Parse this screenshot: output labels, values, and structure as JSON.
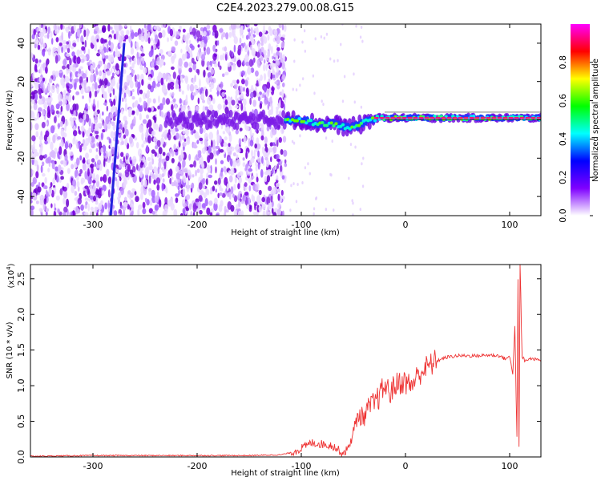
{
  "title": "C2E4.2023.279.00.08.G15",
  "chart_data": [
    {
      "type": "heatmap",
      "panel": "spectrogram",
      "xlabel": "Height of straight line (km)",
      "ylabel": "Frequency (Hz)",
      "xlim": [
        -360,
        130
      ],
      "ylim": [
        -50,
        50
      ],
      "xticks": [
        -300,
        -200,
        -100,
        0,
        100
      ],
      "xtick_labels": [
        "-300",
        "-200",
        "-100",
        "0",
        "100"
      ],
      "yticks": [
        -40,
        -20,
        0,
        20,
        40
      ],
      "ytick_labels": [
        "-40",
        "-20",
        "0",
        "20",
        "40"
      ],
      "description_of_content": "scattered low-amplitude noise for heights below about -115 km; strong narrow signal near 0 to 2 Hz from about -115 km to 130 km; a nearly vertical track from about (-283, -50) to (-270, 40)",
      "noise_region_x": [
        -360,
        -115
      ],
      "signal_band_center_hz": [
        {
          "x": -115,
          "y": 0
        },
        {
          "x": -100,
          "y": 0
        },
        {
          "x": -85,
          "y": -2
        },
        {
          "x": -70,
          "y": -2
        },
        {
          "x": -55,
          "y": -4
        },
        {
          "x": -45,
          "y": -3
        },
        {
          "x": -35,
          "y": 0
        },
        {
          "x": -25,
          "y": 1
        },
        {
          "x": 0,
          "y": 1
        },
        {
          "x": 40,
          "y": 1
        },
        {
          "x": 80,
          "y": 1
        },
        {
          "x": 100,
          "y": 1
        },
        {
          "x": 130,
          "y": 1
        }
      ],
      "track_line": [
        {
          "x": -283,
          "y": -50
        },
        {
          "x": -270,
          "y": 40
        }
      ]
    },
    {
      "type": "colorbar",
      "label": "Normalized spectral amplitude",
      "range": [
        0.0,
        1.0
      ],
      "ticks": [
        0.0,
        0.2,
        0.4,
        0.6,
        0.8
      ],
      "tick_labels": [
        "0.0",
        "0.2",
        "0.4",
        "0.6",
        "0.8"
      ],
      "colormap": [
        "#ffffff",
        "#7f00ff",
        "#0000ff",
        "#00ffff",
        "#00ff00",
        "#ffff00",
        "#ff0000",
        "#ff00ff"
      ]
    },
    {
      "type": "line",
      "panel": "snr",
      "xlabel": "Height of straight line (km)",
      "ylabel": "SNR (10 * v/v)",
      "scale_label": "(x10",
      "scale_exponent": "4",
      "xlim": [
        -360,
        130
      ],
      "ylim": [
        0.0,
        2.7
      ],
      "xticks": [
        -300,
        -200,
        -100,
        0,
        100
      ],
      "xtick_labels": [
        "-300",
        "-200",
        "-100",
        "0",
        "100"
      ],
      "yticks": [
        0.0,
        0.5,
        1.0,
        1.5,
        2.0,
        2.5
      ],
      "ytick_labels": [
        "0.0",
        "0.5",
        "1.0",
        "1.5",
        "2.0",
        "2.5"
      ],
      "color": "#ee3333",
      "series": [
        {
          "x": [
            -360,
            -300,
            -250,
            -200,
            -150,
            -120,
            -110,
            -100,
            -90,
            -80,
            -70,
            -60,
            -55,
            -50,
            -45,
            -40,
            -35,
            -30,
            -25,
            -20,
            -15,
            -10,
            -5,
            0,
            5,
            10,
            15,
            20,
            25,
            30,
            40,
            50,
            60,
            70,
            80,
            90,
            95,
            100,
            103,
            105,
            107,
            108,
            109,
            110,
            112,
            115,
            120,
            130
          ],
          "y": [
            0.01,
            0.02,
            0.02,
            0.02,
            0.02,
            0.03,
            0.06,
            0.12,
            0.2,
            0.18,
            0.16,
            0.05,
            0.12,
            0.35,
            0.6,
            0.55,
            0.7,
            0.75,
            0.85,
            1.0,
            0.9,
            1.0,
            1.05,
            1.05,
            1.0,
            1.1,
            1.2,
            1.25,
            1.3,
            1.35,
            1.4,
            1.42,
            1.42,
            1.42,
            1.43,
            1.42,
            1.38,
            1.4,
            1.2,
            1.8,
            0.3,
            2.45,
            0.1,
            2.7,
            1.38,
            1.35,
            1.38,
            1.36
          ]
        }
      ]
    }
  ]
}
